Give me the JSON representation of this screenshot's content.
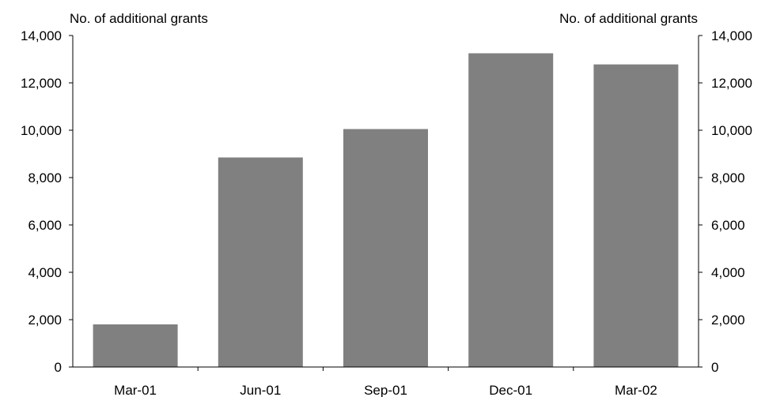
{
  "chart_data": {
    "type": "bar",
    "categories": [
      "Mar-01",
      "Jun-01",
      "Sep-01",
      "Dec-01",
      "Mar-02"
    ],
    "values": [
      1800,
      8850,
      10050,
      13250,
      12780
    ],
    "ylabel_left": "No. of additional grants",
    "ylabel_right": "No. of additional grants",
    "ylim": [
      0,
      14000
    ],
    "yticks": [
      0,
      2000,
      4000,
      6000,
      8000,
      10000,
      12000,
      14000
    ],
    "ytick_labels": [
      "0",
      "2,000",
      "4,000",
      "6,000",
      "8,000",
      "10,000",
      "12,000",
      "14,000"
    ],
    "grid": false,
    "bar_color": "#808080"
  }
}
